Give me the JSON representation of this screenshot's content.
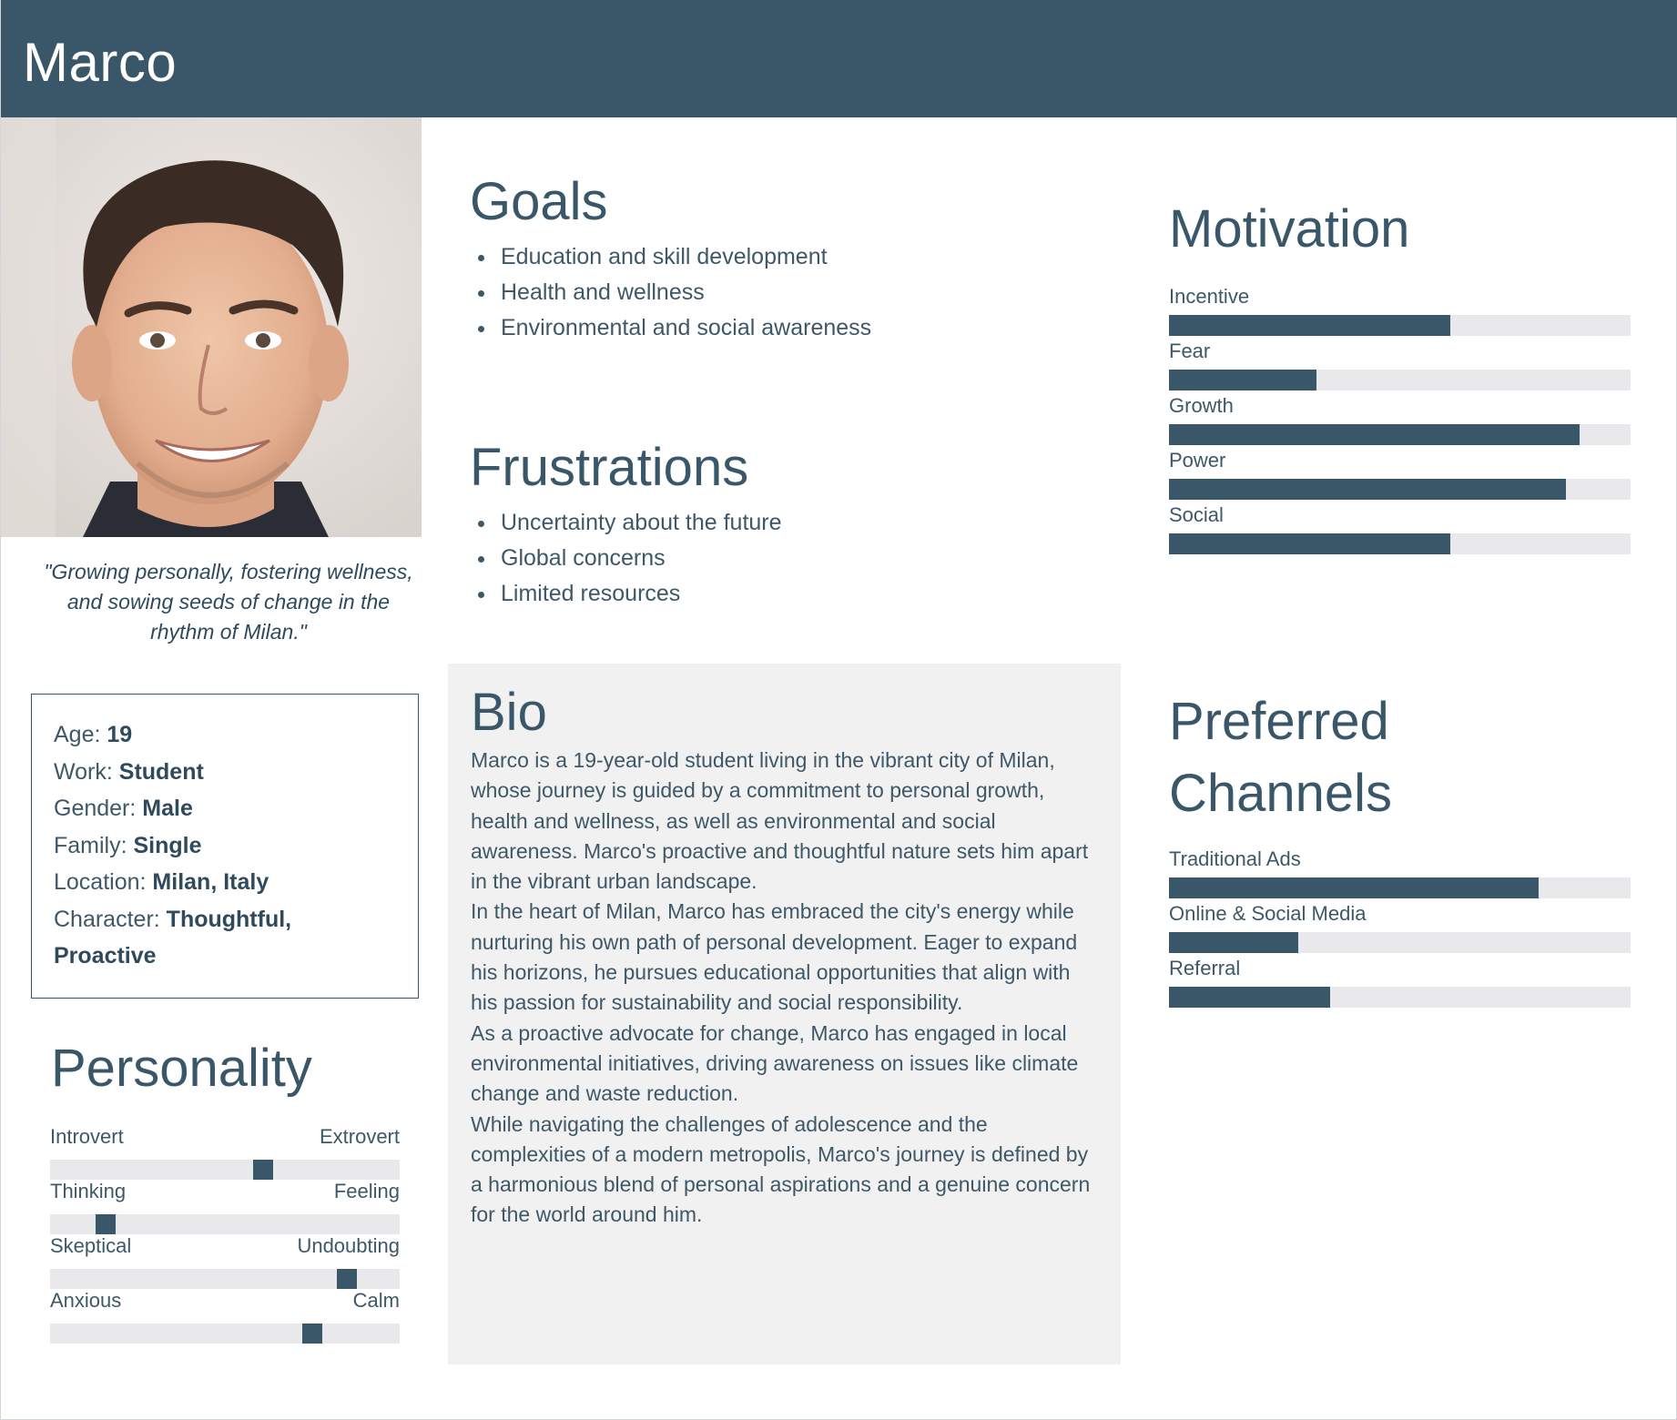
{
  "persona": {
    "name": "Marco",
    "quote": "\"Growing personally, fostering wellness, and sowing seeds of change in the rhythm of Milan.\""
  },
  "info": [
    {
      "label": "Age: ",
      "value": "19"
    },
    {
      "label": "Work: ",
      "value": "Student"
    },
    {
      "label": "Gender: ",
      "value": "Male"
    },
    {
      "label": "Family: ",
      "value": "Single"
    },
    {
      "label": "Location: ",
      "value": "Milan, Italy"
    },
    {
      "label": "Character: ",
      "value": "Thoughtful, Proactive"
    }
  ],
  "personality": {
    "title": "Personality",
    "traits": [
      {
        "left": "Introvert",
        "right": "Extrovert",
        "value": 0.61
      },
      {
        "left": "Thinking",
        "right": "Feeling",
        "value": 0.16
      },
      {
        "left": "Skeptical",
        "right": "Undoubting",
        "value": 0.85
      },
      {
        "left": "Anxious",
        "right": "Calm",
        "value": 0.75
      }
    ]
  },
  "goals": {
    "title": "Goals",
    "items": [
      "Education and skill development",
      "Health and wellness",
      "Environmental and social awareness"
    ]
  },
  "frustrations": {
    "title": "Frustrations",
    "items": [
      "Uncertainty about the future",
      "Global concerns",
      "Limited resources"
    ]
  },
  "bio": {
    "title": "Bio",
    "paragraphs": [
      "Marco is a 19-year-old student living in the vibrant city of Milan, whose journey is guided by a commitment to personal growth, health and wellness, as well as environmental and social awareness. Marco's proactive and thoughtful nature sets him apart in the vibrant urban landscape.",
      "In the heart of Milan, Marco has embraced the city's energy while nurturing his own path of personal development. Eager to expand his horizons, he pursues educational opportunities that align with his passion for sustainability and social responsibility.",
      "As a proactive advocate for change, Marco has engaged in local environmental initiatives, driving awareness on issues like climate change and waste reduction.",
      "While navigating the challenges of adolescence and the complexities of a modern metropolis, Marco's journey is defined by a harmonious blend of personal aspirations and a genuine concern for the world around him."
    ]
  },
  "motivation": {
    "title": "Motivation",
    "items": [
      {
        "label": "Incentive",
        "value": 0.61
      },
      {
        "label": "Fear",
        "value": 0.32
      },
      {
        "label": "Growth",
        "value": 0.89
      },
      {
        "label": "Power",
        "value": 0.86
      },
      {
        "label": "Social",
        "value": 0.61
      }
    ]
  },
  "channels": {
    "title": "Preferred Channels",
    "items": [
      {
        "label": "Traditional Ads",
        "value": 0.8
      },
      {
        "label": "Online & Social Media",
        "value": 0.28
      },
      {
        "label": "Referral",
        "value": 0.35
      }
    ]
  },
  "colors": {
    "accent": "#395769",
    "track": "#e9e9eb",
    "bio_bg": "#f1f1f1",
    "text": "#3e5868"
  },
  "icons": {
    "photo": "portrait-photo"
  }
}
